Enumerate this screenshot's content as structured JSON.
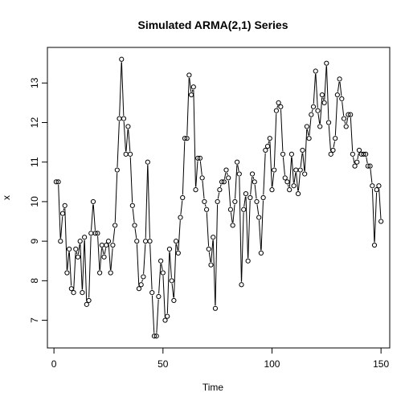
{
  "chart_data": {
    "type": "line",
    "title": "Simulated ARMA(2,1) Series",
    "xlabel": "Time",
    "ylabel": "x",
    "xlim": [
      -3,
      154
    ],
    "ylim": [
      6.3,
      13.9
    ],
    "x_ticks": [
      0,
      50,
      100,
      150
    ],
    "y_ticks": [
      7,
      8,
      9,
      10,
      11,
      12,
      13
    ],
    "grid": false,
    "legend": "none",
    "series": [
      {
        "x": [
          1,
          2,
          3,
          4,
          5,
          6,
          7,
          8,
          9,
          10,
          11,
          12,
          13,
          14,
          15,
          16,
          17,
          18,
          19,
          20,
          21,
          22,
          23,
          24,
          25,
          26,
          27,
          28,
          29,
          30,
          31,
          32,
          33,
          34,
          35,
          36,
          37,
          38,
          39,
          40,
          41,
          42,
          43,
          44,
          45,
          46,
          47,
          48,
          49,
          50,
          51,
          52,
          53,
          54,
          55,
          56,
          57,
          58,
          59,
          60,
          61,
          62,
          63,
          64,
          65,
          66,
          67,
          68,
          69,
          70,
          71,
          72,
          73,
          74,
          75,
          76,
          77,
          78,
          79,
          80,
          81,
          82,
          83,
          84,
          85,
          86,
          87,
          88,
          89,
          90,
          91,
          92,
          93,
          94,
          95,
          96,
          97,
          98,
          99,
          100,
          101,
          102,
          103,
          104,
          105,
          106,
          107,
          108,
          109,
          110,
          111,
          112,
          113,
          114,
          115,
          116,
          117,
          118,
          119,
          120,
          121,
          122,
          123,
          124,
          125,
          126,
          127,
          128,
          129,
          130,
          131,
          132,
          133,
          134,
          135,
          136,
          137,
          138,
          139,
          140,
          141,
          142,
          143,
          144,
          145,
          146,
          147,
          148,
          149,
          150
        ],
        "values": [
          10.5,
          10.5,
          9.0,
          9.7,
          9.9,
          8.2,
          8.8,
          7.8,
          7.7,
          8.8,
          8.6,
          9.0,
          7.7,
          9.1,
          7.4,
          7.5,
          9.2,
          10.0,
          9.2,
          9.2,
          8.2,
          8.9,
          8.6,
          8.9,
          9.0,
          8.2,
          8.9,
          9.4,
          10.8,
          12.1,
          13.6,
          12.1,
          11.2,
          11.9,
          11.2,
          9.9,
          9.4,
          9.0,
          7.8,
          7.9,
          8.1,
          9.0,
          11.0,
          9.0,
          7.7,
          6.6,
          6.6,
          7.6,
          8.5,
          8.2,
          7.0,
          7.1,
          8.8,
          8.0,
          7.5,
          9.0,
          8.7,
          9.6,
          10.1,
          11.6,
          11.6,
          13.2,
          12.7,
          12.9,
          10.3,
          11.1,
          11.1,
          10.6,
          10.0,
          9.8,
          8.8,
          8.4,
          9.1,
          7.3,
          10.0,
          10.3,
          10.5,
          10.5,
          10.8,
          10.6,
          9.8,
          9.4,
          10.0,
          11.0,
          10.7,
          7.9,
          9.8,
          10.2,
          8.5,
          10.1,
          10.7,
          10.5,
          10.0,
          9.6,
          8.7,
          10.1,
          11.3,
          11.4,
          11.6,
          10.3,
          10.8,
          12.3,
          12.5,
          12.4,
          11.2,
          10.6,
          10.5,
          10.3,
          11.2,
          10.4,
          10.8,
          10.2,
          10.8,
          11.3,
          10.7,
          11.9,
          11.6,
          12.2,
          12.4,
          13.3,
          12.3,
          11.9,
          12.7,
          12.5,
          13.5,
          12.0,
          11.2,
          11.3,
          11.6,
          12.7,
          13.1,
          12.6,
          12.1,
          11.9,
          12.2,
          12.2,
          11.2,
          10.9,
          11.0,
          11.3,
          11.2,
          11.2,
          11.2,
          10.9,
          10.9,
          10.4,
          8.9,
          10.3,
          10.4,
          9.5
        ]
      }
    ]
  }
}
